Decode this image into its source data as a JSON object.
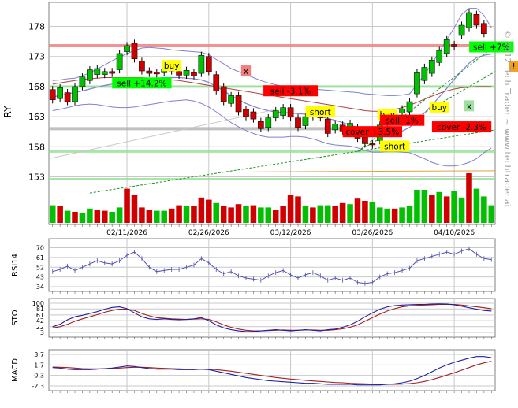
{
  "watermark": "© 2012 Tech Trader ~ www.techtrader.ai",
  "colors": {
    "up": "#00c000",
    "down": "#d00000",
    "grid": "#c8c8c8",
    "frame": "#808080",
    "band": "#8080d0",
    "ma_red": "#b04040",
    "resistance": "#f08080",
    "support": "#90e090",
    "grey_line": "#b0b0b0",
    "indicator_line": "#5050b0",
    "stoch_k": "#2020a0",
    "stoch_d": "#a02020",
    "macd": "#2020a0",
    "signal": "#a02020",
    "buy_label": "#ffff00",
    "sell_label": "#00ff00",
    "short_label": "#ffff00",
    "cover_label": "#ff0000"
  },
  "chart_data": [
    {
      "type": "candlestick",
      "ylabel": "RY",
      "ylim": [
        149,
        182
      ],
      "y_ticks": [
        153,
        158,
        163,
        168,
        173,
        178
      ],
      "x_tick_labels": [
        "02/11/2026",
        "02/26/2026",
        "03/12/2026",
        "03/26/2026",
        "04/10/2026"
      ],
      "x_tick_index": [
        10,
        21,
        32,
        43,
        54
      ],
      "candles": [
        {
          "o": 167.5,
          "c": 165.8
        },
        {
          "o": 166.0,
          "c": 167.8
        },
        {
          "o": 167.0,
          "c": 165.5
        },
        {
          "o": 165.5,
          "c": 168.0
        },
        {
          "o": 168.0,
          "c": 169.6
        },
        {
          "o": 169.0,
          "c": 170.8
        },
        {
          "o": 170.0,
          "c": 171.0
        },
        {
          "o": 170.0,
          "c": 170.5
        },
        {
          "o": 170.5,
          "c": 170.2
        },
        {
          "o": 170.8,
          "c": 173.5
        },
        {
          "o": 173.8,
          "c": 174.8
        },
        {
          "o": 175.2,
          "c": 172.6
        },
        {
          "o": 172.2,
          "c": 170.6
        },
        {
          "o": 170.6,
          "c": 170.2
        },
        {
          "o": 170.4,
          "c": 170.1
        },
        {
          "o": 170.3,
          "c": 170.9
        },
        {
          "o": 170.9,
          "c": 170.6
        },
        {
          "o": 170.5,
          "c": 169.9
        },
        {
          "o": 169.9,
          "c": 170.7
        },
        {
          "o": 170.3,
          "c": 169.8
        },
        {
          "o": 170.2,
          "c": 173.2
        },
        {
          "o": 173.0,
          "c": 170.5
        },
        {
          "o": 170.0,
          "c": 167.3
        },
        {
          "o": 168.0,
          "c": 165.5
        },
        {
          "o": 165.2,
          "c": 166.5
        },
        {
          "o": 166.5,
          "c": 163.8
        },
        {
          "o": 164.2,
          "c": 163.0
        },
        {
          "o": 163.8,
          "c": 162.6
        },
        {
          "o": 162.2,
          "c": 161.0
        },
        {
          "o": 161.2,
          "c": 162.8
        },
        {
          "o": 162.8,
          "c": 164.0
        },
        {
          "o": 163.2,
          "c": 164.5
        },
        {
          "o": 164.5,
          "c": 162.9
        },
        {
          "o": 162.8,
          "c": 161.2
        },
        {
          "o": 161.5,
          "c": 163.0
        },
        {
          "o": 163.0,
          "c": 164.0
        },
        {
          "o": 163.8,
          "c": 162.8
        },
        {
          "o": 162.6,
          "c": 160.2
        },
        {
          "o": 160.8,
          "c": 161.8
        },
        {
          "o": 161.6,
          "c": 160.6
        },
        {
          "o": 160.4,
          "c": 161.9
        },
        {
          "o": 161.2,
          "c": 159.4
        },
        {
          "o": 159.6,
          "c": 158.5
        },
        {
          "o": 158.5,
          "c": 158.3
        },
        {
          "o": 159.0,
          "c": 161.6
        },
        {
          "o": 161.8,
          "c": 162.8
        },
        {
          "o": 162.9,
          "c": 163.2
        },
        {
          "o": 163.6,
          "c": 164.3
        },
        {
          "o": 163.8,
          "c": 165.5
        },
        {
          "o": 166.8,
          "c": 170.3
        },
        {
          "o": 169.0,
          "c": 171.2
        },
        {
          "o": 170.2,
          "c": 172.4
        },
        {
          "o": 172.0,
          "c": 174.0
        },
        {
          "o": 173.5,
          "c": 175.8
        },
        {
          "o": 175.0,
          "c": 174.6
        },
        {
          "o": 176.5,
          "c": 178.2
        },
        {
          "o": 177.8,
          "c": 180.3
        },
        {
          "o": 180.0,
          "c": 178.2
        },
        {
          "o": 178.5,
          "c": 176.8
        },
        {
          "o": 174.8,
          "c": 174.9
        }
      ],
      "volume": [
        {
          "v": 0.32,
          "up": true
        },
        {
          "v": 0.3,
          "up": false
        },
        {
          "v": 0.22,
          "up": true
        },
        {
          "v": 0.2,
          "up": false
        },
        {
          "v": 0.18,
          "up": true
        },
        {
          "v": 0.26,
          "up": true
        },
        {
          "v": 0.24,
          "up": false
        },
        {
          "v": 0.22,
          "up": false
        },
        {
          "v": 0.2,
          "up": true
        },
        {
          "v": 0.28,
          "up": true
        },
        {
          "v": 0.62,
          "up": false
        },
        {
          "v": 0.5,
          "up": false
        },
        {
          "v": 0.28,
          "up": false
        },
        {
          "v": 0.24,
          "up": false
        },
        {
          "v": 0.22,
          "up": true
        },
        {
          "v": 0.22,
          "up": true
        },
        {
          "v": 0.26,
          "up": false
        },
        {
          "v": 0.32,
          "up": false
        },
        {
          "v": 0.3,
          "up": true
        },
        {
          "v": 0.3,
          "up": false
        },
        {
          "v": 0.46,
          "up": false
        },
        {
          "v": 0.42,
          "up": false
        },
        {
          "v": 0.36,
          "up": true
        },
        {
          "v": 0.3,
          "up": false
        },
        {
          "v": 0.28,
          "up": false
        },
        {
          "v": 0.34,
          "up": false
        },
        {
          "v": 0.3,
          "up": true
        },
        {
          "v": 0.32,
          "up": false
        },
        {
          "v": 0.28,
          "up": true
        },
        {
          "v": 0.28,
          "up": true
        },
        {
          "v": 0.24,
          "up": false
        },
        {
          "v": 0.3,
          "up": false
        },
        {
          "v": 0.5,
          "up": false
        },
        {
          "v": 0.48,
          "up": false
        },
        {
          "v": 0.3,
          "up": true
        },
        {
          "v": 0.28,
          "up": false
        },
        {
          "v": 0.32,
          "up": true
        },
        {
          "v": 0.32,
          "up": true
        },
        {
          "v": 0.3,
          "up": false
        },
        {
          "v": 0.36,
          "up": false
        },
        {
          "v": 0.34,
          "up": true
        },
        {
          "v": 0.44,
          "up": false
        },
        {
          "v": 0.4,
          "up": false
        },
        {
          "v": 0.38,
          "up": true
        },
        {
          "v": 0.28,
          "up": true
        },
        {
          "v": 0.26,
          "up": true
        },
        {
          "v": 0.26,
          "up": false
        },
        {
          "v": 0.28,
          "up": true
        },
        {
          "v": 0.3,
          "up": true
        },
        {
          "v": 0.6,
          "up": true
        },
        {
          "v": 0.6,
          "up": true
        },
        {
          "v": 0.5,
          "up": false
        },
        {
          "v": 0.56,
          "up": true
        },
        {
          "v": 0.48,
          "up": false
        },
        {
          "v": 0.58,
          "up": true
        },
        {
          "v": 0.46,
          "up": true
        },
        {
          "v": 0.9,
          "up": false
        },
        {
          "v": 0.62,
          "up": true
        },
        {
          "v": 0.48,
          "up": true
        },
        {
          "v": 0.32,
          "up": true
        }
      ],
      "upper_band": [
        169.0,
        169.1,
        169.3,
        169.4,
        169.8,
        170.3,
        170.9,
        171.6,
        172.3,
        172.9,
        173.5,
        174.0,
        174.4,
        174.5,
        174.4,
        174.3,
        174.1,
        174.0,
        173.9,
        173.8,
        173.7,
        173.3,
        172.5,
        171.8,
        171.0,
        170.5,
        170.0,
        169.5,
        169.0,
        168.6,
        168.3,
        168.0,
        167.8,
        167.7,
        167.6,
        167.6,
        167.5,
        167.4,
        167.3,
        167.2,
        167.1,
        167.0,
        166.8,
        166.7,
        166.6,
        166.5,
        166.5,
        166.6,
        166.8,
        168.4,
        170.0,
        171.8,
        173.8,
        175.8,
        177.8,
        180.0,
        181.0,
        181.0,
        179.8,
        177.8
      ],
      "lower_band": [
        164.0,
        164.2,
        164.5,
        164.8,
        165.0,
        165.1,
        165.0,
        164.8,
        164.6,
        164.5,
        164.5,
        164.6,
        164.8,
        165.0,
        165.2,
        165.4,
        165.6,
        165.7,
        165.8,
        165.6,
        165.2,
        164.6,
        163.8,
        162.9,
        162.0,
        161.3,
        160.7,
        160.2,
        159.8,
        159.6,
        159.6,
        159.6,
        159.7,
        159.7,
        159.6,
        159.3,
        158.9,
        158.5,
        158.3,
        158.2,
        158.1,
        157.8,
        157.4,
        157.1,
        157.1,
        157.2,
        157.2,
        157.1,
        157.0,
        156.5,
        156.0,
        155.4,
        155.0,
        154.8,
        154.8,
        155.0,
        155.4,
        156.0,
        157.0,
        157.8
      ],
      "middle_band": [
        166.3,
        166.5,
        166.8,
        167.0,
        167.3,
        167.6,
        167.9,
        168.2,
        168.4,
        168.6,
        168.8,
        169.0,
        169.2,
        169.3,
        169.4,
        169.5,
        169.5,
        169.5,
        169.4,
        169.3,
        169.1,
        168.7,
        168.0,
        167.3,
        166.5,
        165.8,
        165.2,
        164.7,
        164.3,
        164.0,
        163.8,
        163.7,
        163.6,
        163.5,
        163.4,
        163.2,
        163.0,
        162.7,
        162.4,
        162.0,
        161.6,
        161.2,
        160.8,
        160.5,
        160.3,
        160.2,
        160.3,
        160.6,
        161.2,
        162.4,
        163.6,
        164.9,
        166.3,
        167.7,
        169.2,
        170.6,
        171.9,
        172.8,
        173.2,
        173.4
      ],
      "ma_long": [
        168.4,
        168.6,
        168.8,
        169.0,
        169.2,
        169.3,
        169.4,
        169.5,
        169.5,
        169.5,
        169.5,
        169.5,
        169.5,
        169.4,
        169.3,
        169.2,
        169.1,
        169.0,
        168.8,
        168.6,
        168.4,
        168.2,
        168.0,
        167.8,
        167.6,
        167.4,
        167.2,
        167.0,
        166.8,
        166.6,
        166.4,
        166.2,
        166.0,
        165.8,
        165.6,
        165.4,
        165.2,
        165.0,
        164.8,
        164.6,
        164.4,
        164.2,
        164.0,
        163.9,
        163.9,
        164.0,
        164.2,
        164.5,
        164.9,
        165.4,
        165.9,
        166.4,
        166.9,
        167.3,
        167.6,
        167.8,
        167.9,
        168.0,
        168.0,
        168.0
      ],
      "resistance_level": 174.8,
      "support_levels": [
        168.0,
        157.2,
        152.6
      ],
      "grey_level": 161.0,
      "annotations": [
        {
          "text": "buy",
          "kind": "buy",
          "i": 16,
          "y": 171.5
        },
        {
          "text": "sell +14.2%",
          "kind": "sell",
          "i": 12,
          "y": 168.6
        },
        {
          "text": "x",
          "kind": "exit-red",
          "i": 26,
          "y": 170.6
        },
        {
          "text": "sell -3.1%",
          "kind": "cover",
          "i": 32,
          "y": 167.3
        },
        {
          "text": "short",
          "kind": "short",
          "i": 36,
          "y": 163.8
        },
        {
          "text": "buy",
          "kind": "buy",
          "i": 45,
          "y": 163.4
        },
        {
          "text": "sell -1%",
          "kind": "cover",
          "i": 47,
          "y": 162.4
        },
        {
          "text": "cover +3.5%",
          "kind": "cover",
          "i": 43,
          "y": 160.5
        },
        {
          "text": "cover -2.3%",
          "kind": "cover",
          "i": 55,
          "y": 161.3
        },
        {
          "text": "short",
          "kind": "short",
          "i": 46,
          "y": 158.1
        },
        {
          "text": "buy",
          "kind": "buy",
          "i": 52,
          "y": 164.6
        },
        {
          "text": "sell +7%",
          "kind": "sell",
          "i": 59,
          "y": 174.6
        },
        {
          "text": "x",
          "kind": "exit-green",
          "i": 56,
          "y": 164.8
        },
        {
          "text": "!",
          "kind": "alert",
          "i": 62,
          "y": 171.4
        }
      ]
    },
    {
      "type": "line",
      "ylabel": "RSI14",
      "ylim": [
        34,
        74
      ],
      "y_ticks": [
        34,
        43,
        52,
        61,
        70
      ],
      "values": [
        48,
        50,
        53,
        49,
        52,
        55,
        58,
        56,
        55,
        58,
        63,
        66,
        60,
        52,
        48,
        49,
        50,
        50,
        52,
        54,
        60,
        56,
        50,
        46,
        48,
        44,
        42,
        41,
        40,
        44,
        47,
        49,
        45,
        42,
        45,
        47,
        44,
        40,
        42,
        40,
        42,
        38,
        37,
        38,
        43,
        46,
        47,
        49,
        51,
        58,
        60,
        62,
        64,
        66,
        64,
        67,
        69,
        64,
        60,
        59
      ]
    },
    {
      "type": "line",
      "ylabel": "STO",
      "ylim": [
        3,
        100
      ],
      "y_ticks": [
        3,
        22,
        42,
        61,
        81,
        100
      ],
      "series": [
        {
          "key": "k",
          "values": [
            22,
            30,
            45,
            55,
            60,
            66,
            72,
            80,
            86,
            88,
            82,
            68,
            55,
            48,
            46,
            48,
            46,
            45,
            46,
            48,
            52,
            42,
            28,
            18,
            12,
            8,
            6,
            6,
            8,
            10,
            12,
            10,
            8,
            10,
            12,
            10,
            8,
            12,
            14,
            20,
            28,
            40,
            55,
            68,
            80,
            88,
            92,
            94,
            95,
            96,
            96,
            97,
            98,
            97,
            95,
            90,
            85,
            80,
            76,
            74
          ]
        },
        {
          "key": "d",
          "values": [
            18,
            22,
            30,
            40,
            48,
            55,
            62,
            70,
            76,
            80,
            80,
            76,
            66,
            58,
            52,
            50,
            48,
            47,
            46,
            47,
            48,
            46,
            38,
            28,
            20,
            14,
            10,
            8,
            8,
            9,
            10,
            11,
            10,
            10,
            11,
            11,
            10,
            10,
            12,
            15,
            20,
            28,
            40,
            52,
            64,
            74,
            82,
            88,
            91,
            93,
            94,
            95,
            96,
            96,
            96,
            94,
            91,
            88,
            85,
            82
          ]
        }
      ]
    },
    {
      "type": "line",
      "ylabel": "MACD",
      "ylim": [
        -2.3,
        3.7
      ],
      "y_ticks": [
        -2.3,
        -0.3,
        1.7,
        3.7
      ],
      "series": [
        {
          "key": "macd",
          "values": [
            1.2,
            1.1,
            0.9,
            0.8,
            0.8,
            0.8,
            0.9,
            1.0,
            1.1,
            1.3,
            1.5,
            1.4,
            1.2,
            1.0,
            0.9,
            0.9,
            0.9,
            0.8,
            0.8,
            0.8,
            0.9,
            0.8,
            0.5,
            0.2,
            -0.1,
            -0.4,
            -0.7,
            -0.9,
            -1.1,
            -1.3,
            -1.4,
            -1.5,
            -1.6,
            -1.7,
            -1.8,
            -1.8,
            -1.9,
            -2.0,
            -2.0,
            -2.0,
            -2.0,
            -2.1,
            -2.1,
            -2.1,
            -2.1,
            -2.0,
            -1.9,
            -1.7,
            -1.4,
            -0.9,
            -0.3,
            0.4,
            1.1,
            1.7,
            2.2,
            2.6,
            3.0,
            3.3,
            3.3,
            3.1
          ]
        },
        {
          "key": "signal",
          "values": [
            1.3,
            1.25,
            1.2,
            1.1,
            1.0,
            0.95,
            0.95,
            0.95,
            1.0,
            1.1,
            1.2,
            1.25,
            1.25,
            1.2,
            1.1,
            1.05,
            1.0,
            0.95,
            0.9,
            0.9,
            0.9,
            0.9,
            0.8,
            0.65,
            0.5,
            0.3,
            0.1,
            -0.1,
            -0.3,
            -0.5,
            -0.7,
            -0.85,
            -1.0,
            -1.1,
            -1.25,
            -1.35,
            -1.45,
            -1.55,
            -1.65,
            -1.7,
            -1.8,
            -1.85,
            -1.9,
            -1.95,
            -2.0,
            -2.0,
            -2.0,
            -1.95,
            -1.85,
            -1.7,
            -1.45,
            -1.1,
            -0.7,
            -0.25,
            0.2,
            0.7,
            1.2,
            1.7,
            2.1,
            2.4
          ]
        }
      ]
    }
  ]
}
